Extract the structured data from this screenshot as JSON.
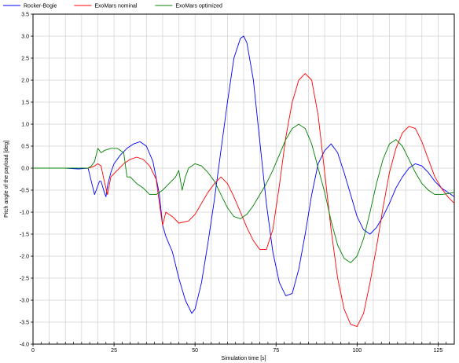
{
  "chart_data": {
    "type": "line",
    "xlabel": "Simulation time [s]",
    "ylabel": "Pitch angle of the payload [deg]",
    "xlim": [
      0,
      130
    ],
    "ylim": [
      -4.0,
      3.5
    ],
    "grid": true,
    "legend_placement": "top-left",
    "x_ticks": [
      {
        "value": 0,
        "label": "0"
      },
      {
        "value": 25,
        "label": "25"
      },
      {
        "value": 50,
        "label": "50"
      },
      {
        "value": 75,
        "label": "75"
      },
      {
        "value": 100,
        "label": "100"
      },
      {
        "value": 125,
        "label": "125"
      }
    ],
    "y_ticks": [
      {
        "value": 3.5,
        "label": "3.5"
      },
      {
        "value": 3.0,
        "label": "3.0"
      },
      {
        "value": 2.5,
        "label": "2.5"
      },
      {
        "value": 2.0,
        "label": "2.0"
      },
      {
        "value": 1.5,
        "label": "1.5"
      },
      {
        "value": 1.0,
        "label": "1.0"
      },
      {
        "value": 0.5,
        "label": "0.5"
      },
      {
        "value": 0.0,
        "label": "0.0"
      },
      {
        "value": -0.5,
        "label": "-0.5"
      },
      {
        "value": -1.0,
        "label": "-1.0"
      },
      {
        "value": -1.5,
        "label": "-1.5"
      },
      {
        "value": -2.0,
        "label": "-2.0"
      },
      {
        "value": -2.5,
        "label": "-2.5"
      },
      {
        "value": -3.0,
        "label": "-3.0"
      },
      {
        "value": -3.5,
        "label": "-3.5"
      },
      {
        "value": -4.0,
        "label": "-4.0"
      }
    ],
    "series": [
      {
        "name": "Rocker-Bogie",
        "color": "#0000ff",
        "points": [
          [
            0,
            0
          ],
          [
            10,
            0
          ],
          [
            14,
            -0.02
          ],
          [
            17,
            0
          ],
          [
            18,
            -0.3
          ],
          [
            19,
            -0.6
          ],
          [
            20,
            -0.4
          ],
          [
            20.5,
            -0.3
          ],
          [
            21,
            -0.3
          ],
          [
            22,
            -0.55
          ],
          [
            22.5,
            -0.65
          ],
          [
            23,
            -0.4
          ],
          [
            24,
            -0.1
          ],
          [
            25,
            0.1
          ],
          [
            27,
            0.3
          ],
          [
            29,
            0.45
          ],
          [
            31,
            0.55
          ],
          [
            33,
            0.6
          ],
          [
            35,
            0.5
          ],
          [
            37,
            0.15
          ],
          [
            39,
            -0.6
          ],
          [
            40,
            -1.3
          ],
          [
            41,
            -1.55
          ],
          [
            43,
            -1.9
          ],
          [
            45,
            -2.5
          ],
          [
            47,
            -3.0
          ],
          [
            49,
            -3.3
          ],
          [
            50,
            -3.2
          ],
          [
            52,
            -2.6
          ],
          [
            54,
            -1.7
          ],
          [
            56,
            -0.7
          ],
          [
            58,
            0.4
          ],
          [
            60,
            1.5
          ],
          [
            62,
            2.5
          ],
          [
            64,
            2.95
          ],
          [
            65,
            3.0
          ],
          [
            66,
            2.85
          ],
          [
            68,
            2.0
          ],
          [
            70,
            0.6
          ],
          [
            72,
            -0.8
          ],
          [
            74,
            -1.9
          ],
          [
            76,
            -2.6
          ],
          [
            78,
            -2.9
          ],
          [
            80,
            -2.85
          ],
          [
            82,
            -2.3
          ],
          [
            84,
            -1.5
          ],
          [
            86,
            -0.6
          ],
          [
            88,
            0.1
          ],
          [
            90,
            0.4
          ],
          [
            92,
            0.55
          ],
          [
            94,
            0.35
          ],
          [
            96,
            -0.1
          ],
          [
            98,
            -0.6
          ],
          [
            100,
            -1.1
          ],
          [
            102,
            -1.4
          ],
          [
            104,
            -1.5
          ],
          [
            106,
            -1.35
          ],
          [
            108,
            -1.1
          ],
          [
            110,
            -0.8
          ],
          [
            112,
            -0.45
          ],
          [
            114,
            -0.2
          ],
          [
            116,
            0.0
          ],
          [
            118,
            0.1
          ],
          [
            120,
            0.05
          ],
          [
            122,
            -0.1
          ],
          [
            124,
            -0.3
          ],
          [
            126,
            -0.45
          ],
          [
            128,
            -0.55
          ],
          [
            130,
            -0.65
          ]
        ]
      },
      {
        "name": "ExoMars nominal",
        "color": "#ff0000",
        "points": [
          [
            0,
            0
          ],
          [
            10,
            0
          ],
          [
            14,
            0
          ],
          [
            17,
            0
          ],
          [
            18,
            0.02
          ],
          [
            19,
            0.05
          ],
          [
            20,
            0.1
          ],
          [
            21,
            0.05
          ],
          [
            22,
            -0.3
          ],
          [
            23,
            -0.6
          ],
          [
            24,
            -0.2
          ],
          [
            26,
            -0.05
          ],
          [
            28,
            0.1
          ],
          [
            30,
            0.2
          ],
          [
            32,
            0.25
          ],
          [
            34,
            0.2
          ],
          [
            36,
            0.05
          ],
          [
            38,
            -0.25
          ],
          [
            39,
            -0.8
          ],
          [
            40,
            -1.3
          ],
          [
            41,
            -1.0
          ],
          [
            43,
            -1.1
          ],
          [
            45,
            -1.25
          ],
          [
            48,
            -1.2
          ],
          [
            50,
            -1.05
          ],
          [
            52,
            -0.8
          ],
          [
            54,
            -0.55
          ],
          [
            56,
            -0.35
          ],
          [
            58,
            -0.2
          ],
          [
            60,
            -0.35
          ],
          [
            62,
            -0.65
          ],
          [
            64,
            -1.0
          ],
          [
            66,
            -1.35
          ],
          [
            68,
            -1.65
          ],
          [
            70,
            -1.85
          ],
          [
            72,
            -1.85
          ],
          [
            74,
            -1.4
          ],
          [
            76,
            -0.4
          ],
          [
            78,
            0.7
          ],
          [
            80,
            1.5
          ],
          [
            82,
            2.0
          ],
          [
            84,
            2.15
          ],
          [
            86,
            2.0
          ],
          [
            88,
            1.2
          ],
          [
            90,
            -0.1
          ],
          [
            92,
            -1.4
          ],
          [
            94,
            -2.5
          ],
          [
            96,
            -3.2
          ],
          [
            98,
            -3.55
          ],
          [
            100,
            -3.6
          ],
          [
            102,
            -3.3
          ],
          [
            104,
            -2.6
          ],
          [
            106,
            -1.8
          ],
          [
            108,
            -0.9
          ],
          [
            110,
            -0.1
          ],
          [
            112,
            0.45
          ],
          [
            114,
            0.8
          ],
          [
            116,
            0.95
          ],
          [
            118,
            0.9
          ],
          [
            120,
            0.6
          ],
          [
            122,
            0.2
          ],
          [
            124,
            -0.2
          ],
          [
            126,
            -0.45
          ],
          [
            128,
            -0.65
          ],
          [
            130,
            -0.8
          ]
        ]
      },
      {
        "name": "ExoMars optimized",
        "color": "#008000",
        "points": [
          [
            0,
            0
          ],
          [
            10,
            0
          ],
          [
            14,
            0
          ],
          [
            17,
            0
          ],
          [
            18,
            0.05
          ],
          [
            19,
            0.15
          ],
          [
            20,
            0.45
          ],
          [
            21,
            0.35
          ],
          [
            22,
            0.4
          ],
          [
            24,
            0.45
          ],
          [
            26,
            0.45
          ],
          [
            28,
            0.35
          ],
          [
            29,
            -0.2
          ],
          [
            30,
            -0.2
          ],
          [
            32,
            -0.35
          ],
          [
            34,
            -0.45
          ],
          [
            36,
            -0.6
          ],
          [
            38,
            -0.6
          ],
          [
            40,
            -0.5
          ],
          [
            42,
            -0.35
          ],
          [
            44,
            -0.2
          ],
          [
            45,
            -0.05
          ],
          [
            46,
            -0.5
          ],
          [
            47,
            -0.2
          ],
          [
            48,
            0.0
          ],
          [
            50,
            0.1
          ],
          [
            52,
            0.05
          ],
          [
            54,
            -0.1
          ],
          [
            56,
            -0.3
          ],
          [
            58,
            -0.6
          ],
          [
            60,
            -0.9
          ],
          [
            62,
            -1.1
          ],
          [
            64,
            -1.15
          ],
          [
            66,
            -1.05
          ],
          [
            68,
            -0.85
          ],
          [
            70,
            -0.6
          ],
          [
            72,
            -0.35
          ],
          [
            74,
            -0.05
          ],
          [
            76,
            0.3
          ],
          [
            78,
            0.65
          ],
          [
            80,
            0.9
          ],
          [
            82,
            1.0
          ],
          [
            84,
            0.9
          ],
          [
            86,
            0.55
          ],
          [
            88,
            0.0
          ],
          [
            90,
            -0.55
          ],
          [
            92,
            -1.2
          ],
          [
            94,
            -1.75
          ],
          [
            96,
            -2.05
          ],
          [
            98,
            -2.15
          ],
          [
            100,
            -2.0
          ],
          [
            102,
            -1.6
          ],
          [
            104,
            -1.0
          ],
          [
            106,
            -0.35
          ],
          [
            108,
            0.2
          ],
          [
            110,
            0.55
          ],
          [
            112,
            0.65
          ],
          [
            114,
            0.5
          ],
          [
            116,
            0.2
          ],
          [
            118,
            -0.1
          ],
          [
            120,
            -0.35
          ],
          [
            122,
            -0.5
          ],
          [
            124,
            -0.6
          ],
          [
            126,
            -0.6
          ],
          [
            128,
            -0.58
          ],
          [
            130,
            -0.55
          ]
        ]
      }
    ]
  }
}
